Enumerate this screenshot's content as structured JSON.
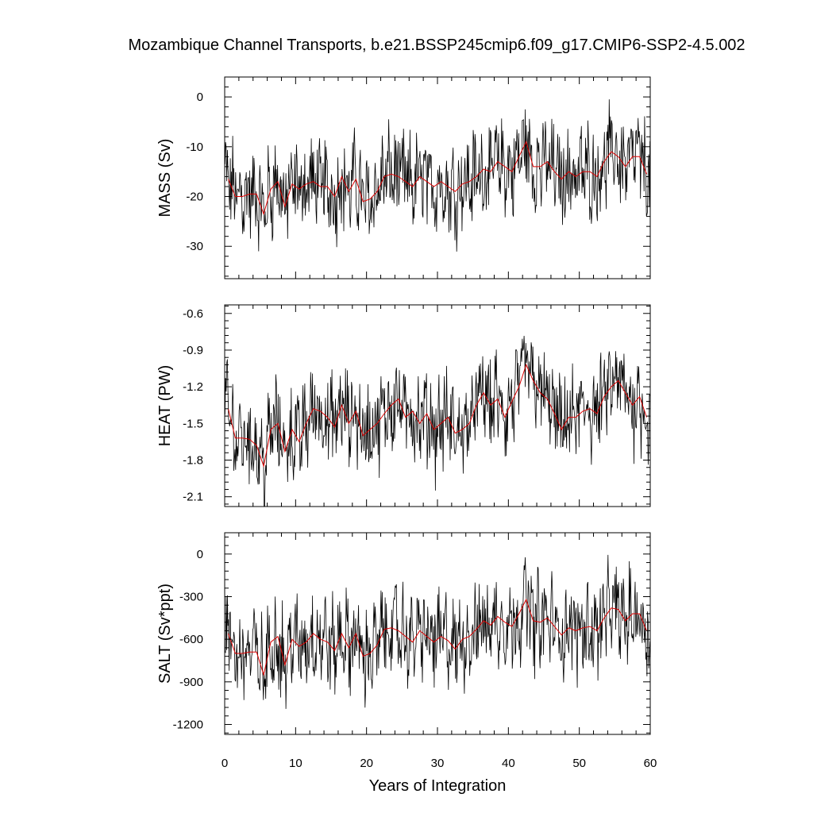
{
  "chart_data": {
    "type": "line",
    "title": "Mozambique Channel Transports, b.e21.BSSP245cmip6.f09_g17.CMIP6-SSP2-4.5.002",
    "xlabel": "Years of Integration",
    "xlim": [
      0,
      60
    ],
    "xticks": [
      0,
      10,
      20,
      30,
      40,
      50,
      60
    ],
    "xtick_labels": [
      "0",
      "10",
      "20",
      "30",
      "40",
      "50",
      "60"
    ],
    "grid": false,
    "series_colors": {
      "monthly": "#000000",
      "annual": "#dd0000"
    },
    "panels": [
      {
        "ylabel": "MASS (Sv)",
        "ylim": [
          -36.5,
          4
        ],
        "yticks": [
          0,
          -10,
          -20,
          -30
        ],
        "ytick_labels": [
          "0",
          "-10",
          "-20",
          "-30"
        ],
        "annual_x": [
          0.5,
          1.5,
          2.5,
          3.5,
          4.5,
          5.5,
          6.5,
          7.5,
          8.5,
          9.5,
          10.5,
          11.5,
          12.5,
          13.5,
          14.5,
          15.5,
          16.5,
          17.5,
          18.5,
          19.5,
          20.5,
          21.5,
          22.5,
          23.5,
          24.5,
          25.5,
          26.5,
          27.5,
          28.5,
          29.5,
          30.5,
          31.5,
          32.5,
          33.5,
          34.5,
          35.5,
          36.5,
          37.5,
          38.5,
          39.5,
          40.5,
          41.5,
          42.5,
          43.5,
          44.5,
          45.5,
          46.5,
          47.5,
          48.5,
          49.5,
          50.5,
          51.5,
          52.5,
          53.5,
          54.5,
          55.5,
          56.5,
          57.5,
          58.5,
          59.5
        ],
        "annual_y": [
          -16.5,
          -20,
          -20,
          -19.5,
          -19.5,
          -23.5,
          -18.5,
          -17,
          -22,
          -17.5,
          -18.5,
          -17.5,
          -17,
          -18,
          -18,
          -20,
          -16,
          -19,
          -16.5,
          -21,
          -20.5,
          -19,
          -16,
          -15.5,
          -16,
          -17,
          -18,
          -16,
          -17,
          -18,
          -17,
          -18,
          -19,
          -17.5,
          -17,
          -16,
          -14.5,
          -15,
          -13,
          -14,
          -15,
          -12,
          -9,
          -14,
          -14,
          -13,
          -15,
          -16.5,
          -15,
          -16,
          -15,
          -15,
          -16,
          -13,
          -11,
          -12,
          -14,
          -12,
          -12,
          -15.5
        ]
      },
      {
        "ylabel": "HEAT (PW)",
        "ylim": [
          -2.18,
          -0.53
        ],
        "yticks": [
          -0.6,
          -0.9,
          -1.2,
          -1.5,
          -1.8,
          -2.1
        ],
        "ytick_labels": [
          "-0.6",
          "-0.9",
          "-1.2",
          "-1.5",
          "-1.8",
          "-2.1"
        ],
        "annual_x": [
          0.5,
          1.5,
          2.5,
          3.5,
          4.5,
          5.5,
          6.5,
          7.5,
          8.5,
          9.5,
          10.5,
          11.5,
          12.5,
          13.5,
          14.5,
          15.5,
          16.5,
          17.5,
          18.5,
          19.5,
          20.5,
          21.5,
          22.5,
          23.5,
          24.5,
          25.5,
          26.5,
          27.5,
          28.5,
          29.5,
          30.5,
          31.5,
          32.5,
          33.5,
          34.5,
          35.5,
          36.5,
          37.5,
          38.5,
          39.5,
          40.5,
          41.5,
          42.5,
          43.5,
          44.5,
          45.5,
          46.5,
          47.5,
          48.5,
          49.5,
          50.5,
          51.5,
          52.5,
          53.5,
          54.5,
          55.5,
          56.5,
          57.5,
          58.5,
          59.5
        ],
        "annual_y": [
          -1.38,
          -1.62,
          -1.62,
          -1.63,
          -1.68,
          -1.85,
          -1.55,
          -1.5,
          -1.73,
          -1.55,
          -1.65,
          -1.5,
          -1.38,
          -1.4,
          -1.45,
          -1.53,
          -1.35,
          -1.5,
          -1.4,
          -1.6,
          -1.55,
          -1.5,
          -1.42,
          -1.35,
          -1.3,
          -1.45,
          -1.4,
          -1.5,
          -1.42,
          -1.55,
          -1.5,
          -1.45,
          -1.58,
          -1.55,
          -1.5,
          -1.35,
          -1.25,
          -1.35,
          -1.3,
          -1.45,
          -1.32,
          -1.2,
          -1.02,
          -1.15,
          -1.25,
          -1.3,
          -1.42,
          -1.55,
          -1.45,
          -1.45,
          -1.4,
          -1.38,
          -1.42,
          -1.28,
          -1.2,
          -1.15,
          -1.25,
          -1.35,
          -1.28,
          -1.45
        ]
      },
      {
        "ylabel": "SALT (Sv*ppt)",
        "ylim": [
          -1270,
          150
        ],
        "yticks": [
          0,
          -300,
          -600,
          -900,
          -1200
        ],
        "ytick_labels": [
          "0",
          "-300",
          "-600",
          "-900",
          "-1200"
        ],
        "annual_x": [
          0.5,
          1.5,
          2.5,
          3.5,
          4.5,
          5.5,
          6.5,
          7.5,
          8.5,
          9.5,
          10.5,
          11.5,
          12.5,
          13.5,
          14.5,
          15.5,
          16.5,
          17.5,
          18.5,
          19.5,
          20.5,
          21.5,
          22.5,
          23.5,
          24.5,
          25.5,
          26.5,
          27.5,
          28.5,
          29.5,
          30.5,
          31.5,
          32.5,
          33.5,
          34.5,
          35.5,
          36.5,
          37.5,
          38.5,
          39.5,
          40.5,
          41.5,
          42.5,
          43.5,
          44.5,
          45.5,
          46.5,
          47.5,
          48.5,
          49.5,
          50.5,
          51.5,
          52.5,
          53.5,
          54.5,
          55.5,
          56.5,
          57.5,
          58.5,
          59.5
        ],
        "annual_y": [
          -560,
          -700,
          -700,
          -690,
          -690,
          -850,
          -620,
          -580,
          -780,
          -600,
          -650,
          -620,
          -560,
          -600,
          -620,
          -680,
          -560,
          -660,
          -560,
          -720,
          -700,
          -640,
          -530,
          -520,
          -540,
          -580,
          -620,
          -540,
          -580,
          -620,
          -580,
          -610,
          -670,
          -600,
          -580,
          -530,
          -470,
          -500,
          -440,
          -480,
          -510,
          -420,
          -320,
          -470,
          -480,
          -450,
          -510,
          -570,
          -520,
          -540,
          -520,
          -510,
          -540,
          -450,
          -380,
          -390,
          -470,
          -420,
          -420,
          -540
        ]
      }
    ]
  }
}
